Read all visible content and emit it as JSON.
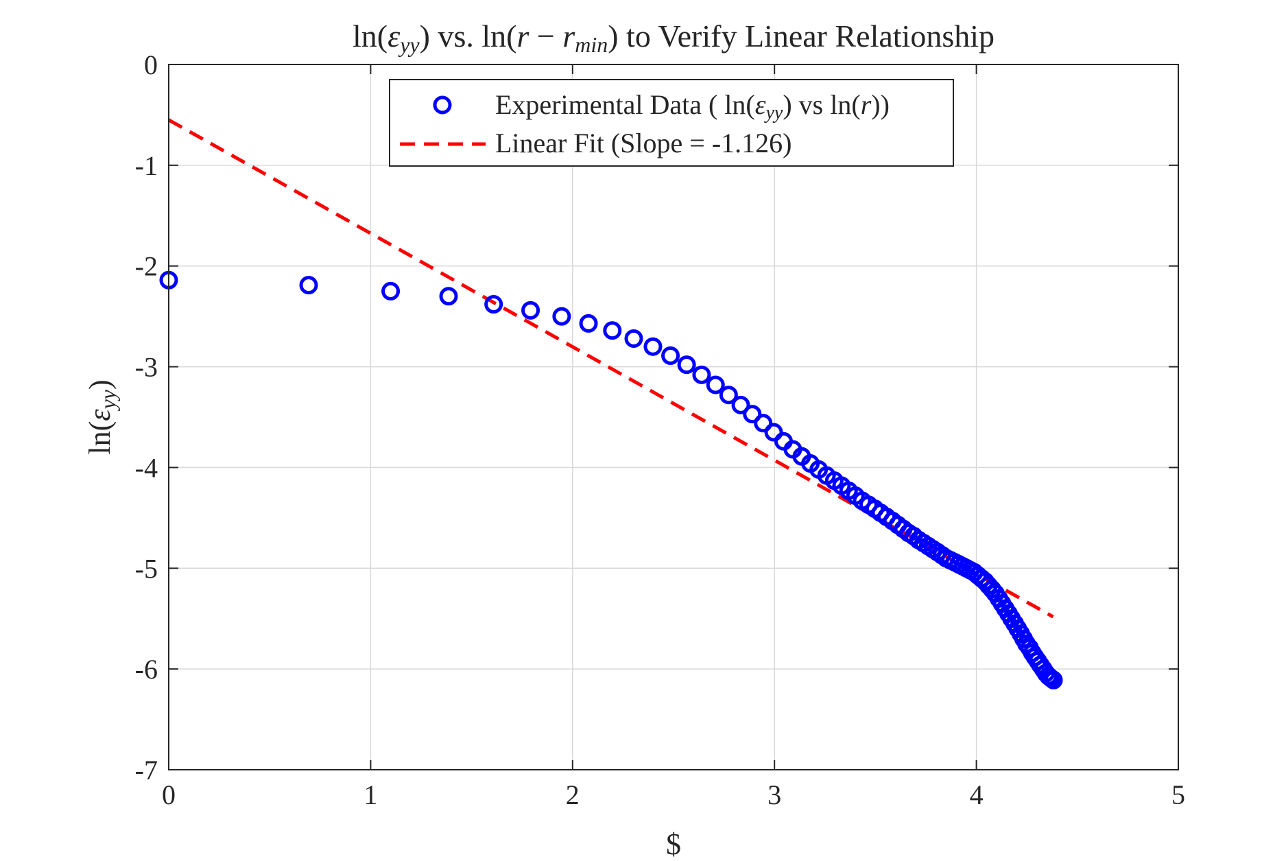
{
  "chart_data": {
    "type": "scatter",
    "title": "ln(εyy) vs.  ln(r − rmin) to Verify Linear Relationship",
    "title_parts": {
      "p1": "ln(",
      "eps": "ε",
      "sub1": "yy",
      "p2": ") vs.  ln(",
      "r1": "r",
      "minus": " − ",
      "r2": "r",
      "sub2": "min",
      "p3": ") to Verify Linear Relationship"
    },
    "xlabel": "$",
    "ylabel": "ln(εyy)",
    "ylabel_parts": {
      "p1": "ln(",
      "eps": "ε",
      "sub": "yy",
      "p2": ")"
    },
    "xlim": [
      0,
      5
    ],
    "ylim": [
      -7,
      0
    ],
    "xticks": [
      "0",
      "1",
      "2",
      "3",
      "4",
      "5"
    ],
    "yticks": [
      "0",
      "-1",
      "-2",
      "-3",
      "-4",
      "-5",
      "-6",
      "-7"
    ],
    "grid": true,
    "legend_position": "top-center",
    "legend": {
      "data_parts": {
        "p1": "Experimental Data ( ln(",
        "eps": "ε",
        "sub": "yy",
        "p2": ") vs  ln(",
        "r": "r",
        "p3": "))"
      },
      "fit_label": "Linear Fit (Slope = -1.126)"
    },
    "colors": {
      "data": "#0000ff",
      "fit": "#ff0000"
    },
    "fit": {
      "slope": -1.126,
      "intercept": -0.55,
      "x_range": [
        0,
        4.38
      ]
    },
    "series": [
      {
        "x": [
          0,
          0.693,
          1.099,
          1.386,
          1.609,
          1.792,
          1.946,
          2.079,
          2.197,
          2.303,
          2.398,
          2.485,
          2.565,
          2.639,
          2.708,
          2.773,
          2.833,
          2.89,
          2.944,
          2.996,
          3.045,
          3.091,
          3.135,
          3.178,
          3.219,
          3.258,
          3.296,
          3.332,
          3.367,
          3.401,
          3.434,
          3.466,
          3.497,
          3.526,
          3.555,
          3.584,
          3.611,
          3.638,
          3.664,
          3.689,
          3.714,
          3.738,
          3.761,
          3.784,
          3.807,
          3.829,
          3.85,
          3.871,
          3.892,
          3.912,
          3.932,
          3.951,
          3.97,
          3.989,
          4.007,
          4.025,
          4.043,
          4.06,
          4.078,
          4.094,
          4.111,
          4.127,
          4.143,
          4.159,
          4.174,
          4.19,
          4.205,
          4.22,
          4.234,
          4.248,
          4.263,
          4.277,
          4.29,
          4.304,
          4.317,
          4.331,
          4.344,
          4.357,
          4.369,
          4.382
        ],
        "y": [
          -2.14,
          -2.19,
          -2.25,
          -2.3,
          -2.38,
          -2.44,
          -2.5,
          -2.57,
          -2.64,
          -2.72,
          -2.8,
          -2.89,
          -2.98,
          -3.08,
          -3.18,
          -3.28,
          -3.38,
          -3.47,
          -3.56,
          -3.65,
          -3.74,
          -3.82,
          -3.89,
          -3.96,
          -4.02,
          -4.08,
          -4.13,
          -4.18,
          -4.23,
          -4.28,
          -4.33,
          -4.37,
          -4.41,
          -4.45,
          -4.49,
          -4.53,
          -4.57,
          -4.61,
          -4.65,
          -4.68,
          -4.72,
          -4.75,
          -4.78,
          -4.81,
          -4.84,
          -4.87,
          -4.9,
          -4.92,
          -4.94,
          -4.96,
          -4.98,
          -5.0,
          -5.02,
          -5.04,
          -5.07,
          -5.1,
          -5.13,
          -5.17,
          -5.21,
          -5.25,
          -5.3,
          -5.35,
          -5.4,
          -5.45,
          -5.5,
          -5.55,
          -5.6,
          -5.65,
          -5.7,
          -5.75,
          -5.79,
          -5.84,
          -5.88,
          -5.92,
          -5.96,
          -6.0,
          -6.04,
          -6.07,
          -6.09,
          -6.11
        ]
      }
    ]
  }
}
